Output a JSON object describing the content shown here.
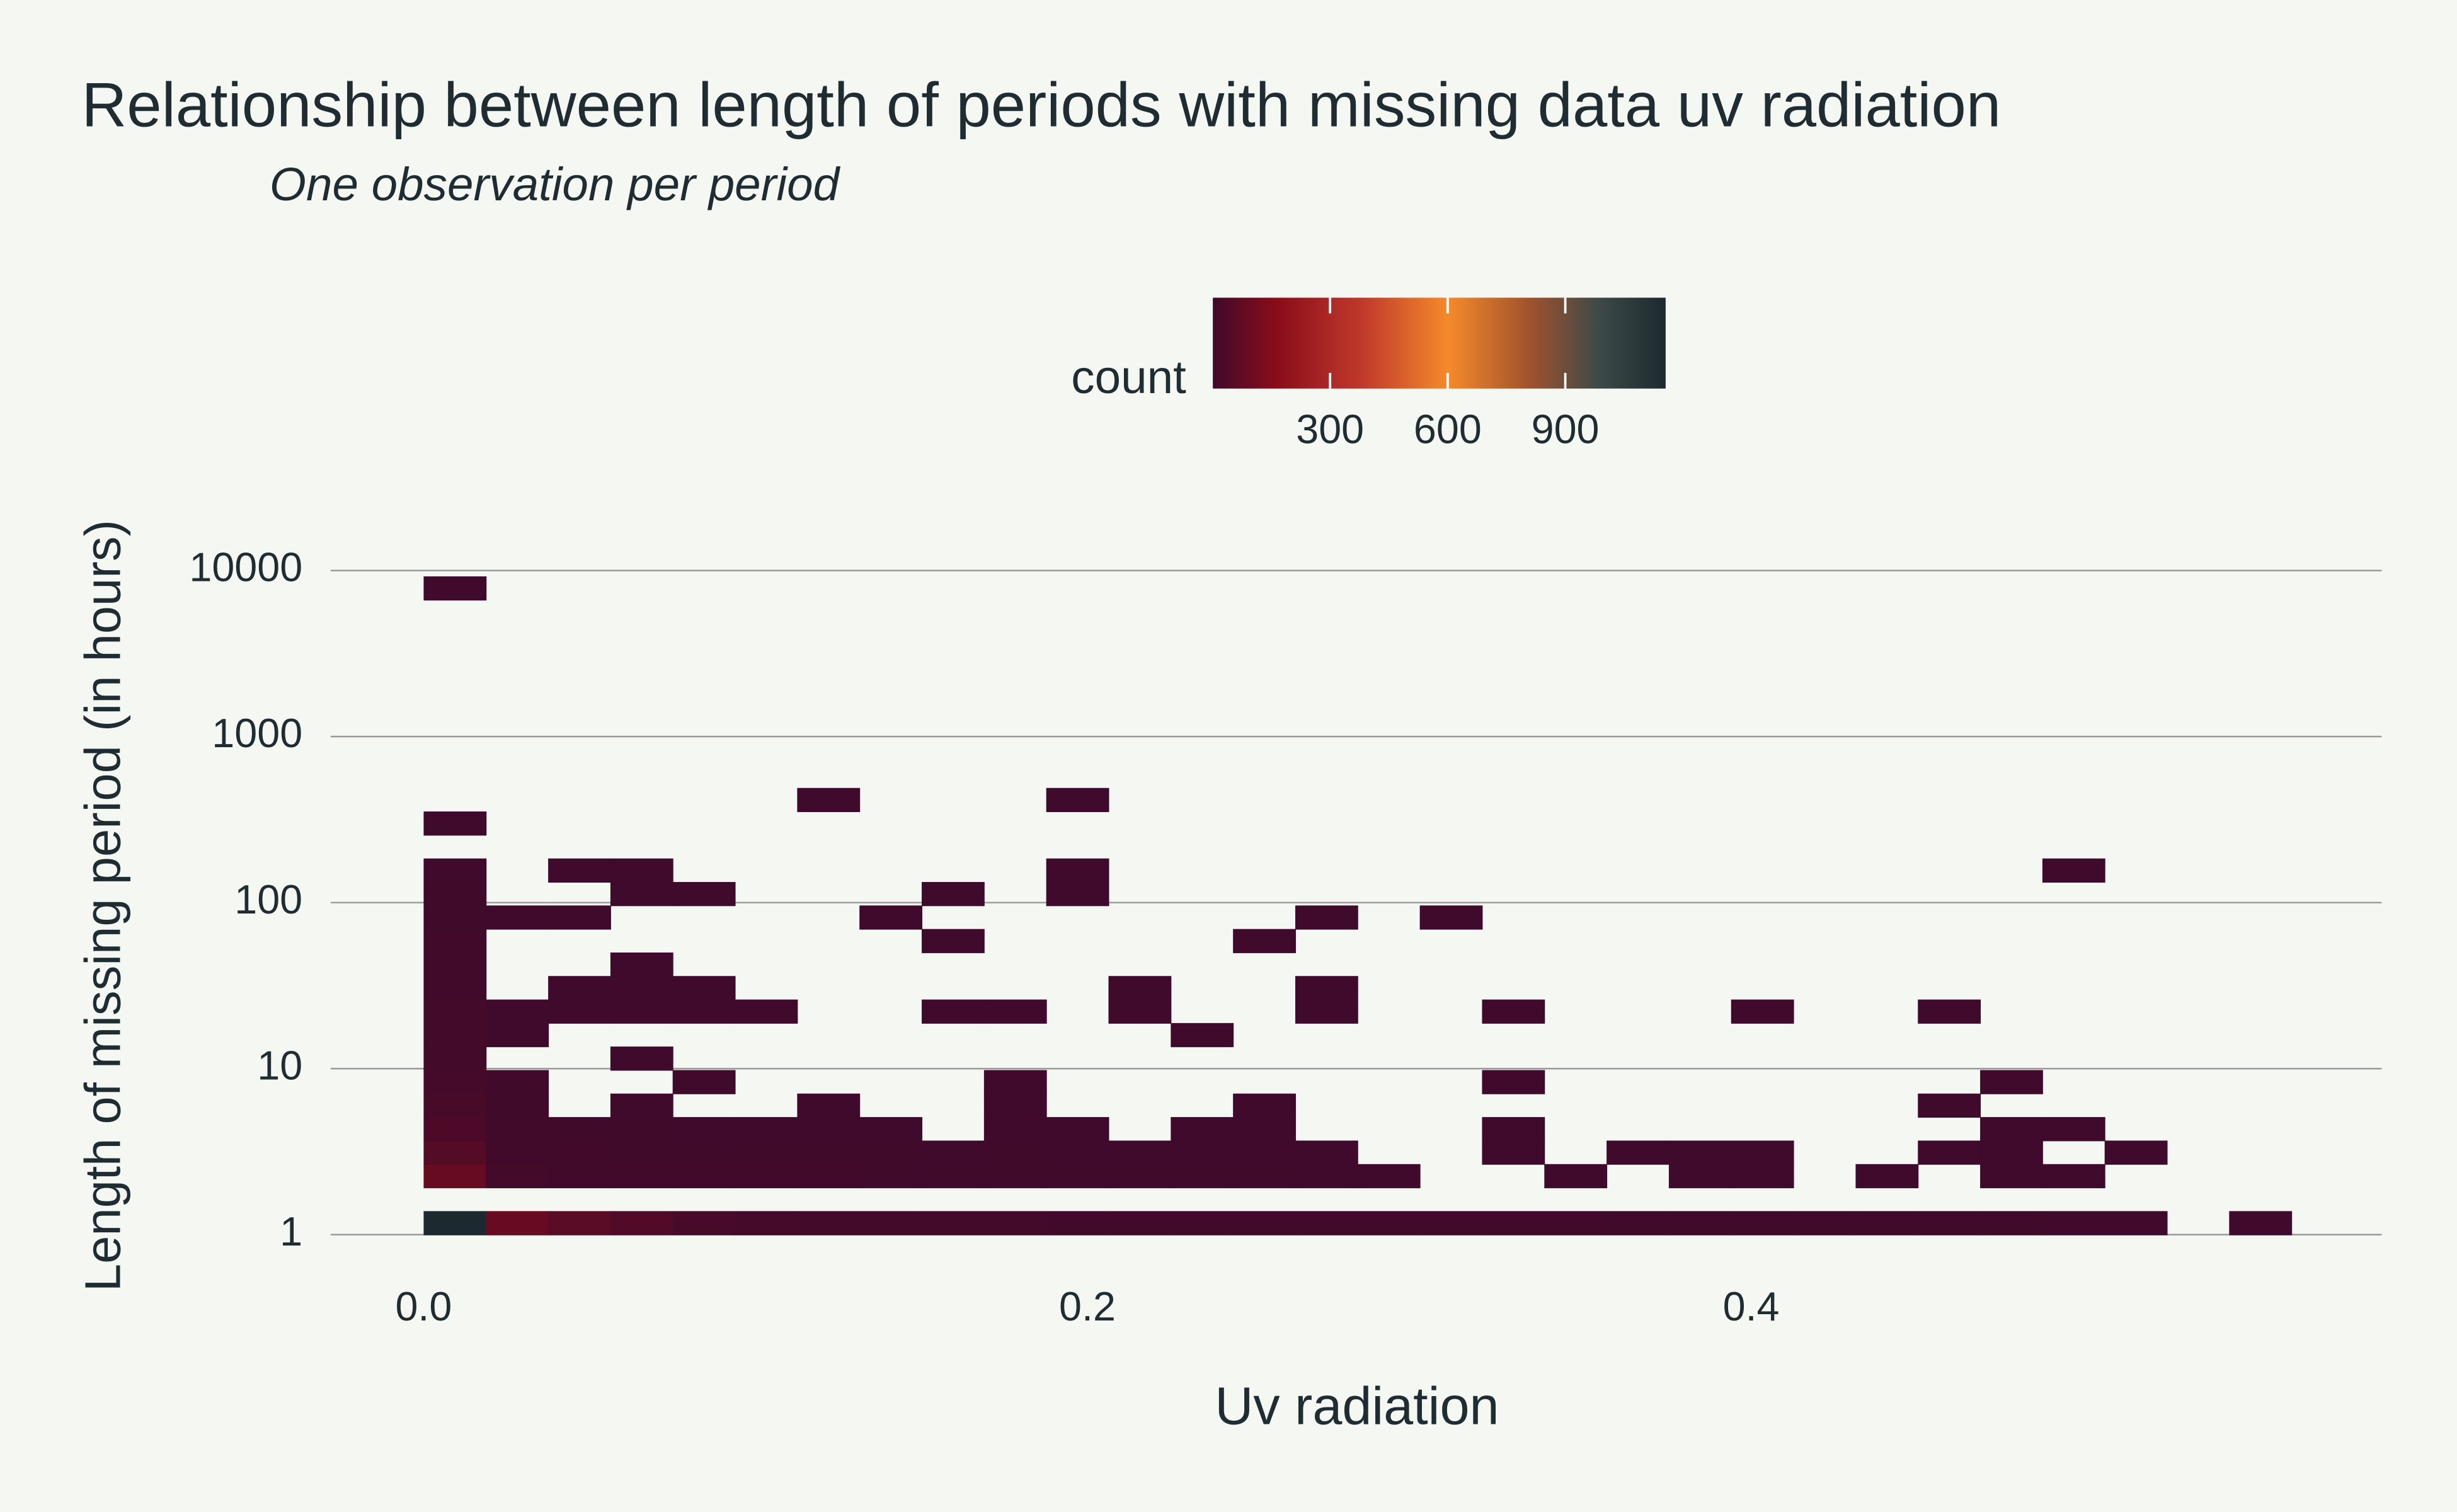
{
  "chart_data": {
    "type": "histogram2d",
    "title": "Relationship between length of periods with missing data uv radiation",
    "subtitle": "One observation per period",
    "x_label": "Uv radiation",
    "y_label": "Length of missing period (in hours)",
    "xlim": [
      -0.028,
      0.59
    ],
    "xticks": [
      {
        "value": 0,
        "label": "0.0"
      },
      0.2,
      0.4
    ],
    "ylim": [
      0.77,
      21000
    ],
    "yticks": [
      1,
      10,
      100,
      1000,
      10000
    ],
    "ylog": true,
    "grid": true,
    "xbins": {
      "start": 0,
      "size": 0.01876
    },
    "ybins": {
      "start": 1,
      "factor": 1.3855
    },
    "zlim": [
      1,
      1156
    ],
    "colorscale": [
      [
        0,
        "#3f0a2b"
      ],
      [
        0.14,
        "#8a0c1a"
      ],
      [
        0.33,
        "#c0392b"
      ],
      [
        0.52,
        "#f58a2b"
      ],
      [
        0.7,
        "#a0522d"
      ],
      [
        0.85,
        "#3d4a48"
      ],
      [
        1,
        "#1c2a30"
      ]
    ],
    "colorbar": {
      "title": "count",
      "ticks": [
        300,
        600,
        900
      ],
      "position": "top"
    },
    "z": [
      [
        1156,
        90,
        60,
        40,
        20,
        15,
        12,
        10,
        10,
        9,
        8,
        8,
        7,
        7,
        6,
        6,
        5,
        5,
        5,
        4,
        4,
        4,
        3,
        3,
        3,
        3,
        2,
        2,
        null,
        1
      ],
      [
        null,
        null,
        null,
        null,
        null,
        null,
        null,
        null,
        null,
        null,
        null,
        null,
        null,
        null,
        null,
        null,
        null,
        null,
        null,
        null,
        null,
        null,
        null,
        null,
        null,
        null,
        null,
        null,
        null,
        null
      ],
      [
        85,
        12,
        8,
        7,
        6,
        5,
        5,
        4,
        4,
        4,
        3,
        3,
        3,
        3,
        2,
        1,
        null,
        null,
        1,
        null,
        2,
        1,
        null,
        1,
        null,
        2,
        1,
        null,
        null,
        null
      ],
      [
        45,
        8,
        5,
        4,
        4,
        3,
        3,
        3,
        2,
        3,
        2,
        2,
        2,
        2,
        1,
        null,
        null,
        1,
        null,
        1,
        1,
        1,
        null,
        null,
        1,
        1,
        null,
        1,
        null,
        null
      ],
      [
        30,
        6,
        3,
        3,
        2,
        2,
        2,
        1,
        null,
        2,
        1,
        null,
        1,
        1,
        null,
        null,
        null,
        1,
        null,
        null,
        null,
        null,
        null,
        null,
        null,
        1,
        1,
        null,
        null,
        null
      ],
      [
        20,
        4,
        null,
        2,
        null,
        null,
        1,
        null,
        null,
        2,
        null,
        null,
        null,
        1,
        null,
        null,
        null,
        null,
        null,
        null,
        null,
        null,
        null,
        null,
        1,
        null,
        null,
        null,
        null,
        null
      ],
      [
        15,
        3,
        null,
        null,
        1,
        null,
        null,
        null,
        null,
        1,
        null,
        null,
        null,
        null,
        null,
        null,
        null,
        1,
        null,
        null,
        null,
        null,
        null,
        null,
        null,
        1,
        null,
        null,
        null,
        null
      ],
      [
        12,
        null,
        null,
        1,
        null,
        null,
        null,
        null,
        null,
        null,
        null,
        null,
        null,
        null,
        null,
        null,
        null,
        null,
        null,
        null,
        null,
        null,
        null,
        null,
        null,
        null,
        null,
        null,
        null,
        null
      ],
      [
        10,
        1,
        null,
        null,
        null,
        null,
        null,
        null,
        null,
        null,
        null,
        null,
        1,
        null,
        null,
        null,
        null,
        null,
        null,
        null,
        null,
        null,
        null,
        null,
        null,
        null,
        null,
        null,
        null,
        null
      ],
      [
        9,
        2,
        1,
        2,
        1,
        1,
        null,
        null,
        1,
        1,
        null,
        1,
        null,
        null,
        1,
        null,
        null,
        1,
        null,
        null,
        null,
        1,
        null,
        null,
        1,
        null,
        null,
        null,
        null,
        null
      ],
      [
        7,
        null,
        1,
        1,
        1,
        null,
        null,
        null,
        null,
        null,
        null,
        1,
        null,
        null,
        1,
        null,
        null,
        null,
        null,
        null,
        null,
        null,
        null,
        null,
        null,
        null,
        null,
        null,
        null,
        null
      ],
      [
        6,
        null,
        null,
        1,
        null,
        null,
        null,
        null,
        null,
        null,
        null,
        null,
        null,
        null,
        null,
        null,
        null,
        null,
        null,
        null,
        null,
        null,
        null,
        null,
        null,
        null,
        null,
        null,
        null,
        null
      ],
      [
        5,
        null,
        null,
        null,
        null,
        null,
        null,
        null,
        1,
        null,
        null,
        null,
        null,
        1,
        null,
        null,
        null,
        null,
        null,
        null,
        null,
        null,
        null,
        null,
        null,
        null,
        null,
        null,
        null,
        null
      ],
      [
        4,
        1,
        1,
        null,
        null,
        null,
        null,
        1,
        null,
        null,
        null,
        null,
        null,
        null,
        1,
        null,
        1,
        null,
        null,
        null,
        null,
        null,
        null,
        null,
        null,
        null,
        null,
        null,
        null,
        null
      ],
      [
        3,
        null,
        null,
        1,
        1,
        null,
        null,
        null,
        1,
        null,
        1,
        null,
        null,
        null,
        null,
        null,
        null,
        null,
        null,
        null,
        null,
        null,
        null,
        null,
        null,
        null,
        null,
        null,
        null,
        null
      ],
      [
        2,
        null,
        1,
        1,
        null,
        null,
        null,
        null,
        null,
        null,
        1,
        null,
        null,
        null,
        null,
        null,
        null,
        null,
        null,
        null,
        null,
        null,
        null,
        null,
        null,
        null,
        1,
        null,
        null,
        null
      ],
      [
        null,
        null,
        null,
        null,
        null,
        null,
        null,
        null,
        null,
        null,
        null,
        null,
        null,
        null,
        null,
        null,
        null,
        null,
        null,
        null,
        null,
        null,
        null,
        null,
        null,
        null,
        null,
        null,
        null,
        null
      ],
      [
        1,
        null,
        null,
        null,
        null,
        null,
        null,
        null,
        null,
        null,
        null,
        null,
        null,
        null,
        null,
        null,
        null,
        null,
        null,
        null,
        null,
        null,
        null,
        null,
        null,
        null,
        null,
        null,
        null,
        null
      ],
      [
        null,
        null,
        null,
        null,
        null,
        null,
        1,
        null,
        null,
        null,
        1,
        null,
        null,
        null,
        null,
        null,
        null,
        null,
        null,
        null,
        null,
        null,
        null,
        null,
        null,
        null,
        null,
        null,
        null,
        null
      ],
      [
        null,
        null,
        null,
        null,
        null,
        null,
        null,
        null,
        null,
        null,
        null,
        null,
        null,
        null,
        null,
        null,
        null,
        null,
        null,
        null,
        null,
        null,
        null,
        null,
        null,
        null,
        null,
        null,
        null,
        null
      ],
      [
        null,
        null,
        null,
        null,
        null,
        null,
        null,
        null,
        null,
        null,
        null,
        null,
        null,
        null,
        null,
        null,
        null,
        null,
        null,
        null,
        null,
        null,
        null,
        null,
        null,
        null,
        null,
        null,
        null,
        null
      ],
      [
        null,
        null,
        null,
        null,
        null,
        null,
        null,
        null,
        null,
        null,
        null,
        null,
        null,
        null,
        null,
        null,
        null,
        null,
        null,
        null,
        null,
        null,
        null,
        null,
        null,
        null,
        null,
        null,
        null,
        null
      ],
      [
        null,
        null,
        null,
        null,
        null,
        null,
        null,
        null,
        null,
        null,
        null,
        null,
        null,
        null,
        null,
        null,
        null,
        null,
        null,
        null,
        null,
        null,
        null,
        null,
        null,
        null,
        null,
        null,
        null,
        null
      ],
      [
        null,
        null,
        null,
        null,
        null,
        null,
        null,
        null,
        null,
        null,
        null,
        null,
        null,
        null,
        null,
        null,
        null,
        null,
        null,
        null,
        null,
        null,
        null,
        null,
        null,
        null,
        null,
        null,
        null,
        null
      ],
      [
        null,
        null,
        null,
        null,
        null,
        null,
        null,
        null,
        null,
        null,
        null,
        null,
        null,
        null,
        null,
        null,
        null,
        null,
        null,
        null,
        null,
        null,
        null,
        null,
        null,
        null,
        null,
        null,
        null,
        null
      ],
      [
        null,
        null,
        null,
        null,
        null,
        null,
        null,
        null,
        null,
        null,
        null,
        null,
        null,
        null,
        null,
        null,
        null,
        null,
        null,
        null,
        null,
        null,
        null,
        null,
        null,
        null,
        null,
        null,
        null,
        null
      ],
      [
        null,
        null,
        null,
        null,
        null,
        null,
        null,
        null,
        null,
        null,
        null,
        null,
        null,
        null,
        null,
        null,
        null,
        null,
        null,
        null,
        null,
        null,
        null,
        null,
        null,
        null,
        null,
        null,
        null,
        null
      ],
      [
        1,
        null,
        null,
        null,
        null,
        null,
        null,
        null,
        null,
        null,
        null,
        null,
        null,
        null,
        null,
        null,
        null,
        null,
        null,
        null,
        null,
        null,
        null,
        null,
        null,
        null,
        null,
        null,
        null,
        null
      ]
    ]
  }
}
